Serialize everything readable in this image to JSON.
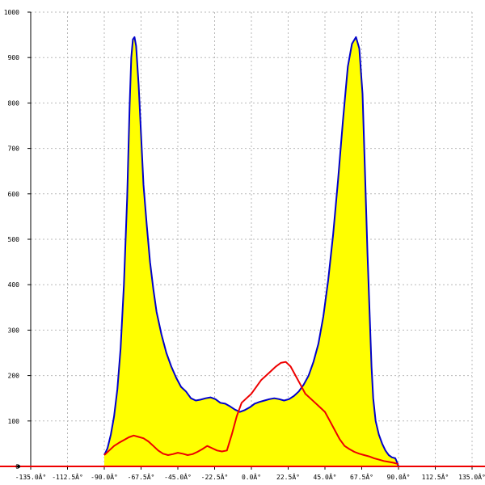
{
  "chart_data": {
    "type": "area",
    "xlim": [
      -135,
      135
    ],
    "ylim": [
      0,
      1000
    ],
    "x_ticks": [
      {
        "value": -135,
        "label": "-135.0Â°"
      },
      {
        "value": -112.5,
        "label": "-112.5Â°"
      },
      {
        "value": -90,
        "label": "-90.0Â°"
      },
      {
        "value": -67.5,
        "label": "-67.5Â°"
      },
      {
        "value": -45,
        "label": "-45.0Â°"
      },
      {
        "value": -22.5,
        "label": "-22.5Â°"
      },
      {
        "value": 0,
        "label": "0.0Â°"
      },
      {
        "value": 22.5,
        "label": "22.5Â°"
      },
      {
        "value": 45,
        "label": "45.0Â°"
      },
      {
        "value": 67.5,
        "label": "67.5Â°"
      },
      {
        "value": 90,
        "label": "90.0Â°"
      },
      {
        "value": 112.5,
        "label": "112.5Â°"
      },
      {
        "value": 135,
        "label": "135.0Â°"
      }
    ],
    "y_ticks": [
      {
        "value": 0,
        "label": "0"
      },
      {
        "value": 100,
        "label": "100"
      },
      {
        "value": 200,
        "label": "200"
      },
      {
        "value": 300,
        "label": "300"
      },
      {
        "value": 400,
        "label": "400"
      },
      {
        "value": 500,
        "label": "500"
      },
      {
        "value": 600,
        "label": "600"
      },
      {
        "value": 700,
        "label": "700"
      },
      {
        "value": 800,
        "label": "800"
      },
      {
        "value": 900,
        "label": "900"
      },
      {
        "value": 1000,
        "label": "1000"
      }
    ],
    "grid": true,
    "series": [
      {
        "color": "#0000cc",
        "fill": "#ffff00",
        "x": [
          -90,
          -88,
          -86,
          -84,
          -82,
          -80,
          -78,
          -76,
          -74.5,
          -73.5,
          -72.5,
          -71.5,
          -70.5,
          -69,
          -67.5,
          -66,
          -64,
          -62,
          -60,
          -58,
          -55,
          -52,
          -49,
          -46,
          -43,
          -40,
          -37,
          -34,
          -31,
          -28,
          -25,
          -22,
          -19,
          -16,
          -13,
          -10,
          -7,
          -4,
          -1,
          2,
          5,
          8,
          11,
          14,
          17,
          20,
          23,
          26,
          29,
          32,
          35,
          38,
          41,
          44,
          47,
          50,
          53,
          56,
          59,
          61.5,
          64,
          66,
          68,
          69.5,
          71,
          72.5,
          73.5,
          74.5,
          76,
          78,
          80,
          82,
          84,
          86,
          88,
          89,
          90
        ],
        "y": [
          25,
          40,
          70,
          110,
          170,
          260,
          400,
          590,
          790,
          900,
          940,
          945,
          925,
          840,
          730,
          620,
          530,
          450,
          390,
          340,
          290,
          250,
          220,
          195,
          175,
          165,
          150,
          145,
          147,
          150,
          152,
          148,
          140,
          138,
          132,
          125,
          120,
          124,
          130,
          138,
          142,
          145,
          148,
          150,
          148,
          145,
          148,
          155,
          165,
          180,
          200,
          230,
          270,
          330,
          410,
          510,
          630,
          760,
          880,
          930,
          945,
          920,
          820,
          650,
          470,
          320,
          220,
          150,
          100,
          70,
          50,
          35,
          25,
          20,
          18,
          10,
          0
        ]
      },
      {
        "color": "#ee0000",
        "x": [
          -90,
          -87,
          -84,
          -81,
          -78,
          -75,
          -72,
          -69,
          -66,
          -63,
          -60,
          -57,
          -54,
          -51,
          -48,
          -45,
          -42,
          -39,
          -36,
          -33,
          -30,
          -27,
          -24,
          -21,
          -18,
          -15,
          -12,
          -9,
          -6,
          -3,
          0,
          3,
          6,
          9,
          12,
          15,
          18,
          21,
          24,
          27,
          30,
          33,
          36,
          39,
          42,
          45,
          48,
          51,
          54,
          57,
          60,
          63,
          66,
          69,
          72,
          75,
          78,
          81,
          84,
          87,
          90
        ],
        "y": [
          25,
          35,
          45,
          52,
          58,
          64,
          68,
          65,
          62,
          55,
          45,
          35,
          28,
          25,
          27,
          30,
          28,
          25,
          27,
          32,
          38,
          45,
          40,
          35,
          33,
          35,
          70,
          110,
          140,
          150,
          160,
          175,
          190,
          200,
          210,
          220,
          228,
          230,
          220,
          200,
          180,
          160,
          150,
          140,
          130,
          120,
          100,
          80,
          60,
          45,
          38,
          32,
          28,
          25,
          22,
          18,
          15,
          12,
          10,
          8,
          5
        ]
      }
    ],
    "baseline_color": "#ee0000"
  }
}
